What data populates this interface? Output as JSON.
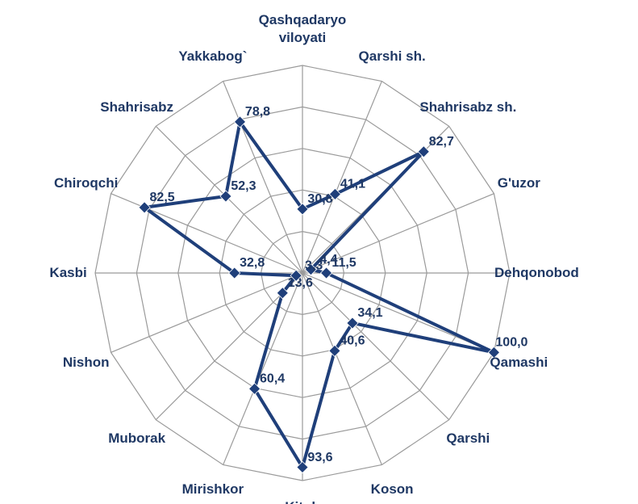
{
  "chart_data": {
    "type": "radar",
    "categories": [
      "Qashqadaryo viloyati",
      "Qarshi sh.",
      "Shahrisabz sh.",
      "G'uzor",
      "Dehqonobod",
      "Qamashi",
      "Qarshi",
      "Koson",
      "Kitob",
      "Mirishkor",
      "Muborak",
      "Nishon",
      "Kasbi",
      "Chiroqchi",
      "Shahrisabz",
      "Yakkabog`"
    ],
    "values": [
      30.8,
      41.1,
      82.7,
      4.4,
      11.5,
      100.0,
      34.1,
      40.6,
      93.6,
      60.4,
      13.6,
      3.3,
      32.8,
      82.5,
      52.3,
      78.8
    ],
    "value_labels": [
      "30,8",
      "41,1",
      "82,7",
      "4,4",
      "11,5",
      "100,0",
      "34,1",
      "40,6",
      "93,6",
      "60,4",
      "13,6",
      "3,3",
      "32,8",
      "82,5",
      "52,3",
      "78,8"
    ],
    "color": "#1f3f7a",
    "ylim": [
      0,
      100
    ],
    "yticks": [
      20,
      40,
      60,
      80,
      100
    ],
    "grid": true
  }
}
